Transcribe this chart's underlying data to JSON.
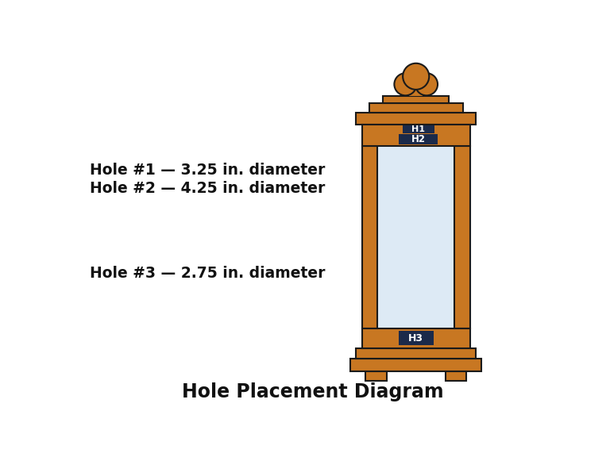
{
  "title": "Hole Placement Diagram",
  "title_fontsize": 17,
  "wood_color": "#C87722",
  "wood_edge": "#1a1a1a",
  "hole_color": "#1B2A4A",
  "hole_text_color": "#ffffff",
  "glass_color": "#cce0f0",
  "glass_alpha": 0.65,
  "bg_color": "#ffffff",
  "labels": [
    "Hole #1 — 3.25 in. diameter",
    "Hole #2 — 4.25 in. diameter",
    "Hole #3 — 2.75 in. diameter"
  ],
  "label_fontsize": 13.5,
  "hole_labels": [
    "H1",
    "H2",
    "H3"
  ],
  "lw": 1.5
}
